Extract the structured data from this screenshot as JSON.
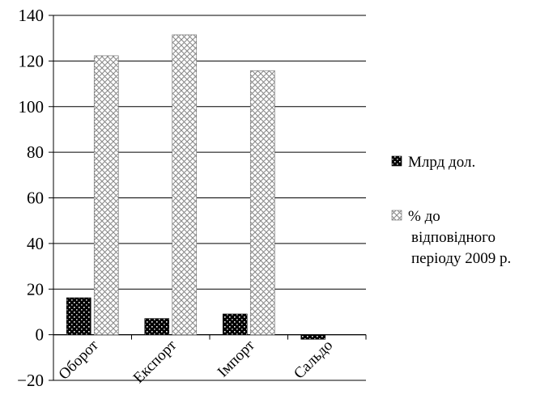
{
  "chart_data": {
    "type": "bar",
    "categories": [
      "Оборот",
      "Експорт",
      "Імпорт",
      "Сальдо"
    ],
    "series": [
      {
        "name": "Млрд дол.",
        "values": [
          16.2,
          7.1,
          9.1,
          -2.0
        ],
        "pattern": "dots",
        "color": "#000000"
      },
      {
        "name": "% до відповідного періоду 2009 р.",
        "values": [
          122.3,
          131.5,
          115.8,
          null
        ],
        "pattern": "crosshatch",
        "color": "#9a9a9a"
      }
    ],
    "legend_lines": [
      [
        "Млрд дол."
      ],
      [
        "% до",
        "відповідного",
        "періоду 2009 р."
      ]
    ],
    "ylim": [
      -20,
      140
    ],
    "yticks": [
      -20,
      0,
      20,
      40,
      60,
      80,
      100,
      120,
      140
    ],
    "ytick_labels": [
      "−20",
      "0",
      "20",
      "40",
      "60",
      "80",
      "100",
      "120",
      "140"
    ],
    "grid": true,
    "legend_position": "right"
  }
}
